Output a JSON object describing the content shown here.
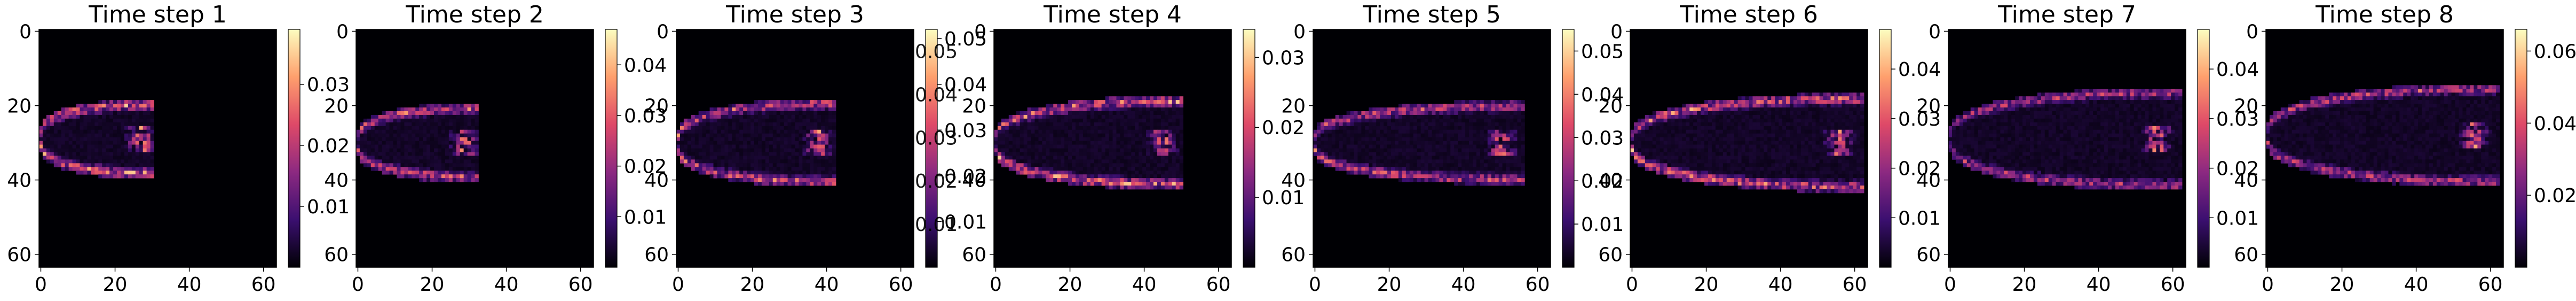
{
  "chart_data": [
    {
      "type": "heatmap",
      "title": "Time step 1",
      "xticks": [
        "0",
        "20",
        "40",
        "60"
      ],
      "yticks": [
        "0",
        "20",
        "40",
        "60"
      ],
      "xlim": [
        0,
        64
      ],
      "ylim": [
        64,
        0
      ],
      "colorbar": {
        "ticks": [
          0.01,
          0.02,
          0.03
        ],
        "labels": [
          "0.01",
          "0.02",
          "0.03"
        ],
        "range": [
          0.0,
          0.039
        ]
      },
      "colormap": [
        "#000004",
        "#3b0f70",
        "#8c2981",
        "#de4968",
        "#fe9f6d",
        "#fcfdbf"
      ],
      "jet": {
        "len": 30,
        "spread": 11,
        "center": 29,
        "bright": 0.95
      }
    },
    {
      "type": "heatmap",
      "title": "Time step 2",
      "xticks": [
        "0",
        "20",
        "40",
        "60"
      ],
      "yticks": [
        "0",
        "20",
        "40",
        "60"
      ],
      "xlim": [
        0,
        64
      ],
      "ylim": [
        64,
        0
      ],
      "colorbar": {
        "ticks": [
          0.01,
          0.02,
          0.03,
          0.04
        ],
        "labels": [
          "0.01",
          "0.02",
          "0.03",
          "0.04"
        ],
        "range": [
          0.0,
          0.047
        ]
      },
      "colormap": [
        "#000004",
        "#3b0f70",
        "#8c2981",
        "#de4968",
        "#fe9f6d",
        "#fcfdbf"
      ],
      "jet": {
        "len": 32,
        "spread": 11,
        "center": 30,
        "bright": 0.85
      }
    },
    {
      "type": "heatmap",
      "title": "Time step 3",
      "xticks": [
        "0",
        "20",
        "40",
        "60"
      ],
      "yticks": [
        "0",
        "20",
        "40",
        "60"
      ],
      "xlim": [
        0,
        64
      ],
      "ylim": [
        64,
        0
      ],
      "colorbar": {
        "ticks": [
          0.01,
          0.02,
          0.03,
          0.04,
          0.05
        ],
        "labels": [
          "0.01",
          "0.02",
          "0.03",
          "0.04",
          "0.05"
        ],
        "range": [
          0.0,
          0.052
        ]
      },
      "colormap": [
        "#000004",
        "#3b0f70",
        "#8c2981",
        "#de4968",
        "#fe9f6d",
        "#fcfdbf"
      ],
      "jet": {
        "len": 42,
        "spread": 13,
        "center": 30,
        "bright": 0.85
      }
    },
    {
      "type": "heatmap",
      "title": "Time step 4",
      "xticks": [
        "0",
        "20",
        "40",
        "60"
      ],
      "yticks": [
        "0",
        "20",
        "40",
        "60"
      ],
      "xlim": [
        0,
        64
      ],
      "ylim": [
        64,
        0
      ],
      "colorbar": {
        "ticks": [
          0.01,
          0.02,
          0.03
        ],
        "labels": [
          "0.01",
          "0.02",
          "0.03"
        ],
        "range": [
          0.0,
          0.034
        ]
      },
      "colormap": [
        "#000004",
        "#3b0f70",
        "#8c2981",
        "#de4968",
        "#fe9f6d",
        "#fcfdbf"
      ],
      "jet": {
        "len": 50,
        "spread": 14,
        "center": 30,
        "bright": 0.95
      }
    },
    {
      "type": "heatmap",
      "title": "Time step 5",
      "xticks": [
        "0",
        "20",
        "40",
        "60"
      ],
      "yticks": [
        "0",
        "20",
        "40",
        "60"
      ],
      "xlim": [
        0,
        64
      ],
      "ylim": [
        64,
        0
      ],
      "colorbar": {
        "ticks": [
          0.01,
          0.02,
          0.03,
          0.04,
          0.05
        ],
        "labels": [
          "0.01",
          "0.02",
          "0.03",
          "0.04",
          "0.05"
        ],
        "range": [
          0.0,
          0.055
        ]
      },
      "colormap": [
        "#000004",
        "#3b0f70",
        "#8c2981",
        "#de4968",
        "#fe9f6d",
        "#fcfdbf"
      ],
      "jet": {
        "len": 56,
        "spread": 12,
        "center": 30,
        "bright": 0.8
      }
    },
    {
      "type": "heatmap",
      "title": "Time step 6",
      "xticks": [
        "0",
        "20",
        "40",
        "60"
      ],
      "yticks": [
        "0",
        "20",
        "40",
        "60"
      ],
      "xlim": [
        0,
        64
      ],
      "ylim": [
        64,
        0
      ],
      "colorbar": {
        "ticks": [
          0.01,
          0.02,
          0.03,
          0.04
        ],
        "labels": [
          "0.01",
          "0.02",
          "0.03",
          "0.04"
        ],
        "range": [
          0.0,
          0.048
        ]
      },
      "colormap": [
        "#000004",
        "#3b0f70",
        "#8c2981",
        "#de4968",
        "#fe9f6d",
        "#fcfdbf"
      ],
      "jet": {
        "len": 62,
        "spread": 15,
        "center": 30,
        "bright": 0.9
      }
    },
    {
      "type": "heatmap",
      "title": "Time step 7",
      "xticks": [
        "0",
        "20",
        "40",
        "60"
      ],
      "yticks": [
        "0",
        "20",
        "40",
        "60"
      ],
      "xlim": [
        0,
        64
      ],
      "ylim": [
        64,
        0
      ],
      "colorbar": {
        "ticks": [
          0.01,
          0.02,
          0.03,
          0.04
        ],
        "labels": [
          "0.01",
          "0.02",
          "0.03",
          "0.04"
        ],
        "range": [
          0.0,
          0.048
        ]
      },
      "colormap": [
        "#000004",
        "#3b0f70",
        "#8c2981",
        "#de4968",
        "#fe9f6d",
        "#fcfdbf"
      ],
      "jet": {
        "len": 62,
        "spread": 16,
        "center": 29,
        "bright": 0.7
      }
    },
    {
      "type": "heatmap",
      "title": "Time step 8",
      "xticks": [
        "0",
        "20",
        "40",
        "60"
      ],
      "yticks": [
        "0",
        "20",
        "40",
        "60"
      ],
      "xlim": [
        0,
        64
      ],
      "ylim": [
        64,
        0
      ],
      "colorbar": {
        "ticks": [
          0.02,
          0.04,
          0.06
        ],
        "labels": [
          "0.02",
          "0.04",
          "0.06"
        ],
        "range": [
          0.0,
          0.066
        ]
      },
      "colormap": [
        "#000004",
        "#3b0f70",
        "#8c2981",
        "#de4968",
        "#fe9f6d",
        "#fcfdbf"
      ],
      "jet": {
        "len": 62,
        "spread": 16,
        "center": 28,
        "bright": 0.75
      }
    }
  ],
  "overlay_colorbars": [
    {
      "ticks": [
        0.01,
        0.02,
        0.03,
        0.04,
        0.05
      ],
      "labels": [
        "0.01",
        "0.02",
        "0.03",
        "0.04",
        "0.05"
      ],
      "range": [
        0.0,
        0.055
      ]
    }
  ]
}
